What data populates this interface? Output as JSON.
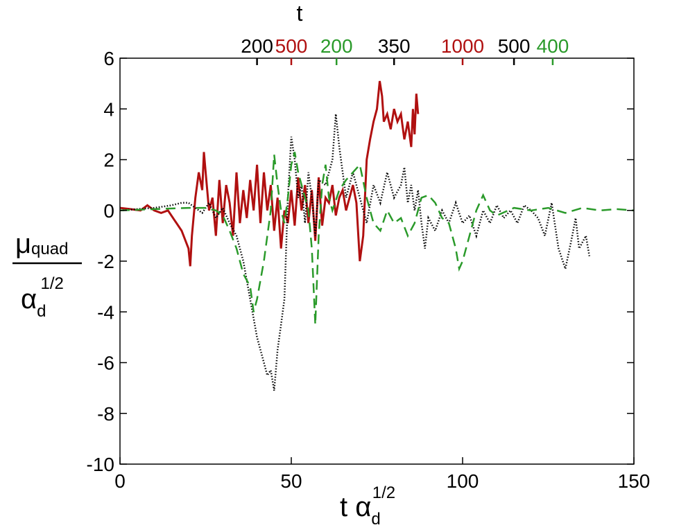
{
  "chart_data": {
    "type": "line",
    "xlim": [
      0,
      150
    ],
    "xticks": [
      0,
      50,
      100,
      150
    ],
    "ylim": [
      -10,
      6
    ],
    "yticks": [
      -10,
      -8,
      -6,
      -4,
      -2,
      0,
      2,
      4,
      6
    ],
    "x2label": "t",
    "x2ticks": [
      {
        "value": 40,
        "label": "200",
        "color": "#000000"
      },
      {
        "value": 50,
        "label": "500",
        "color": "#b01010"
      },
      {
        "value": 63.2,
        "label": "200",
        "color": "#2a9a2a"
      },
      {
        "value": 80,
        "label": "350",
        "color": "#000000"
      },
      {
        "value": 100,
        "label": "1000",
        "color": "#b01010"
      },
      {
        "value": 115,
        "label": "500",
        "color": "#000000"
      },
      {
        "value": 126.3,
        "label": "400",
        "color": "#2a9a2a"
      }
    ],
    "xlabel": {
      "text": "t α",
      "sub": "d",
      "sup": "1/2"
    },
    "ylabel": {
      "numerator": "μ",
      "numerator_sub": "quad",
      "denominator": "α",
      "denominator_sub": "d",
      "denominator_sup": "1/2"
    },
    "series": [
      {
        "color": "#b01010",
        "linestyle": "solid",
        "x": [
          0,
          3,
          6,
          8,
          10,
          12,
          14,
          16,
          18,
          20,
          20.5,
          21,
          22,
          23,
          24,
          24.5,
          25,
          26,
          27,
          28,
          29,
          30,
          31,
          32,
          33,
          34,
          35,
          36,
          37,
          38,
          39,
          40,
          41,
          42,
          43,
          44,
          45,
          46,
          47,
          48,
          49,
          50,
          51,
          52,
          53,
          54,
          55,
          56,
          57,
          58,
          59,
          60,
          61,
          62,
          63,
          64,
          65,
          66,
          67,
          68,
          69,
          70,
          71,
          72,
          73,
          74,
          75,
          75.8,
          76.5,
          77,
          78,
          79,
          80,
          81,
          82,
          83,
          84,
          85,
          85.5,
          86,
          86.5,
          87
        ],
        "values": [
          0.1,
          0.05,
          0,
          0.2,
          0,
          -0.1,
          0,
          -0.4,
          -0.8,
          -1.5,
          -2.2,
          -1,
          0.5,
          1.5,
          0.8,
          2.3,
          1.5,
          0,
          0.5,
          -1,
          1.2,
          -0.5,
          1,
          0.3,
          -1,
          1.5,
          -0.5,
          0.8,
          -0.3,
          1.2,
          0,
          1.8,
          -0.5,
          1.5,
          0,
          1,
          -0.8,
          0.5,
          -1.5,
          0,
          -0.5,
          0.8,
          -0.6,
          1.3,
          0,
          1,
          -0.5,
          0.8,
          -1.2,
          1.3,
          -0.6,
          0.5,
          0.3,
          1,
          -0.2,
          0.5,
          0.8,
          0,
          0.5,
          1,
          0.3,
          -2,
          -1,
          2,
          2.8,
          3.5,
          4,
          5.1,
          4.5,
          3.5,
          3.8,
          3.2,
          4,
          3.5,
          3.8,
          2.8,
          3.5,
          2.5,
          4,
          3,
          4.6,
          3.8
        ]
      },
      {
        "color": "#000000",
        "linestyle": "dotted",
        "x": [
          0,
          5,
          10,
          15,
          18,
          20,
          22,
          24,
          26,
          28,
          30,
          32,
          34,
          36,
          38,
          40,
          42,
          43,
          44,
          45,
          46,
          47,
          48,
          49,
          50,
          51,
          52,
          53,
          54,
          55,
          56,
          57,
          58,
          60,
          62,
          63,
          64,
          65,
          66,
          68,
          70,
          72,
          74,
          76,
          78,
          80,
          82,
          83,
          84,
          85,
          86,
          87,
          88,
          89,
          90,
          92,
          94,
          96,
          98,
          100,
          102,
          104,
          106,
          108,
          110,
          112,
          114,
          116,
          118,
          120,
          122,
          124,
          126,
          128,
          130,
          132,
          133,
          134,
          136,
          137
        ],
        "values": [
          0,
          0.05,
          0.1,
          0.2,
          0.3,
          0.3,
          0.1,
          -0.1,
          0.3,
          -0.3,
          0.1,
          -0.5,
          -1,
          -2,
          -3.5,
          -5,
          -6,
          -6.5,
          -6.3,
          -7.1,
          -5.5,
          -4.5,
          -3.5,
          0.5,
          2.9,
          2,
          0.5,
          1,
          -0.5,
          1.5,
          0.5,
          -1,
          1.2,
          1,
          2,
          3.8,
          2.5,
          1.5,
          0.5,
          1.5,
          0.5,
          -0.5,
          1,
          0.3,
          1.5,
          0.5,
          1,
          1.7,
          0.3,
          1,
          0,
          0.8,
          -0.5,
          -1.5,
          -0.3,
          -0.8,
          0,
          -0.5,
          0.3,
          -0.5,
          -0.2,
          -1,
          0,
          -0.5,
          0.2,
          -0.3,
          0,
          -0.5,
          0.2,
          0,
          -0.3,
          -1,
          0.3,
          -1.5,
          -2.3,
          -1,
          -0.3,
          -1.5,
          -1,
          -1.8
        ]
      },
      {
        "color": "#2a9a2a",
        "linestyle": "dashed",
        "x": [
          0,
          10,
          20,
          25,
          28,
          30,
          32,
          34,
          36,
          38,
          39,
          40,
          42,
          44,
          45,
          46,
          47,
          48,
          49,
          50,
          51,
          52,
          54,
          55,
          56,
          57,
          58,
          59,
          60,
          61,
          62,
          64,
          66,
          68,
          70,
          72,
          74,
          76,
          78,
          80,
          82,
          84,
          86,
          88,
          90,
          92,
          94,
          96,
          98,
          99,
          100,
          102,
          104,
          106,
          108,
          110,
          115,
          120,
          125,
          130,
          135,
          140,
          145,
          150
        ],
        "values": [
          0,
          0.05,
          0.1,
          0.1,
          0,
          -0.2,
          -0.8,
          -1.5,
          -2.5,
          -3,
          -4,
          -3.5,
          -2,
          0,
          2.2,
          1,
          0,
          -0.5,
          0.5,
          1.8,
          2.3,
          1.5,
          0.5,
          0,
          -1.5,
          -4.5,
          -1,
          1,
          1.8,
          0.5,
          0,
          0.8,
          1.2,
          1.5,
          1.8,
          0.5,
          -0.5,
          -0.8,
          0,
          -0.5,
          -0.3,
          -1,
          -0.5,
          0.5,
          0.6,
          0.3,
          -0.3,
          -0.5,
          -1.5,
          -2.3,
          -2,
          -1,
          0,
          0.6,
          0,
          -0.2,
          0.1,
          0,
          0.1,
          -0.1,
          0.1,
          0,
          0.05,
          0
        ]
      }
    ]
  }
}
